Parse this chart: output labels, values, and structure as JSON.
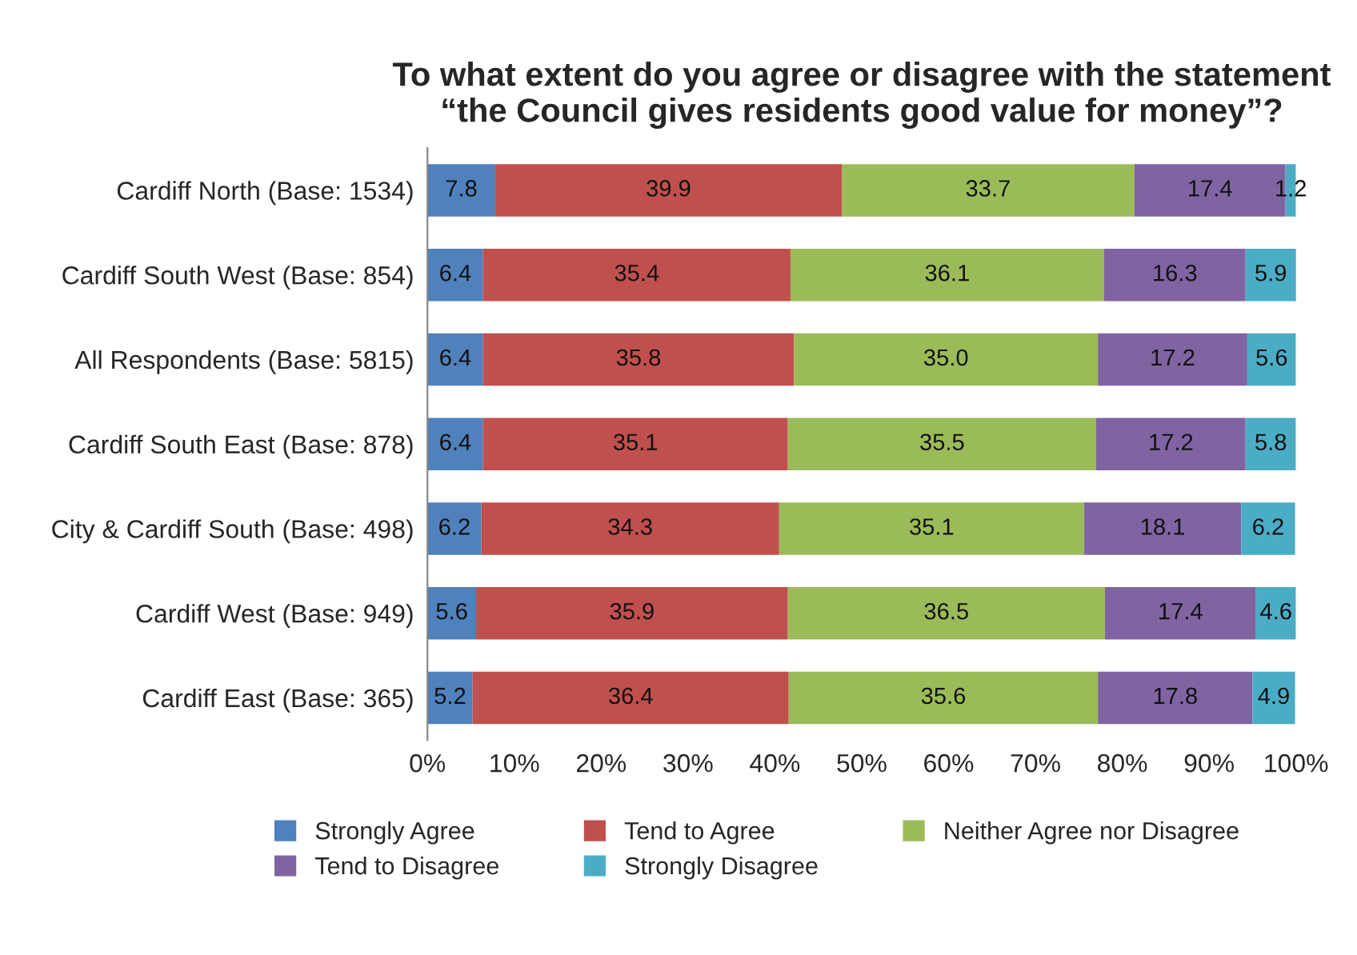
{
  "chart_data": {
    "type": "bar",
    "orientation": "horizontal",
    "stacked": true,
    "title": "To what extent do you agree or disagree with the statement “the Council gives residents good value for money”?",
    "categories": [
      "Cardiff North (Base: 1534)",
      "Cardiff South West (Base: 854)",
      "All Respondents (Base: 5815)",
      "Cardiff South East (Base: 878)",
      "City & Cardiff South (Base: 498)",
      "Cardiff West (Base: 949)",
      "Cardiff East (Base: 365)"
    ],
    "series": [
      {
        "name": "Strongly Agree",
        "color": "#4f81bd",
        "values": [
          7.8,
          6.4,
          6.4,
          6.4,
          6.2,
          5.6,
          5.2
        ],
        "value_labels": [
          "7.8",
          "6.4",
          "6.4",
          "6.4",
          "6.2",
          "5.6",
          "5.2"
        ]
      },
      {
        "name": "Tend to Agree",
        "color": "#c0504d",
        "values": [
          39.9,
          35.4,
          35.8,
          35.1,
          34.3,
          35.9,
          36.4
        ],
        "value_labels": [
          "39.9",
          "35.4",
          "35.8",
          "35.1",
          "34.3",
          "35.9",
          "36.4"
        ]
      },
      {
        "name": "Neither Agree nor Disagree",
        "color": "#9bbb59",
        "values": [
          33.7,
          36.1,
          35.0,
          35.5,
          35.1,
          36.5,
          35.6
        ],
        "value_labels": [
          "33.7",
          "36.1",
          "35.0",
          "35.5",
          "35.1",
          "36.5",
          "35.6"
        ]
      },
      {
        "name": "Tend to Disagree",
        "color": "#8064a2",
        "values": [
          17.4,
          16.3,
          17.2,
          17.2,
          18.1,
          17.4,
          17.8
        ],
        "value_labels": [
          "17.4",
          "16.3",
          "17.2",
          "17.2",
          "18.1",
          "17.4",
          "17.8"
        ]
      },
      {
        "name": "Strongly Disagree",
        "color": "#4bacc6",
        "values": [
          1.2,
          5.9,
          5.6,
          5.8,
          6.2,
          4.6,
          4.9
        ],
        "value_labels": [
          "1.2",
          "5.9",
          "5.6",
          "5.8",
          "6.2",
          "4.6",
          "4.9"
        ]
      }
    ],
    "xlim": [
      0,
      100
    ],
    "xticks": [
      {
        "value": 0,
        "label": "0%"
      },
      {
        "value": 10,
        "label": "10%"
      },
      {
        "value": 20,
        "label": "20%"
      },
      {
        "value": 30,
        "label": "30%"
      },
      {
        "value": 40,
        "label": "40%"
      },
      {
        "value": 50,
        "label": "50%"
      },
      {
        "value": 60,
        "label": "60%"
      },
      {
        "value": 70,
        "label": "70%"
      },
      {
        "value": 80,
        "label": "80%"
      },
      {
        "value": 90,
        "label": "90%"
      },
      {
        "value": 100,
        "label": "100%"
      }
    ],
    "grid": false,
    "legend": "bottom"
  }
}
